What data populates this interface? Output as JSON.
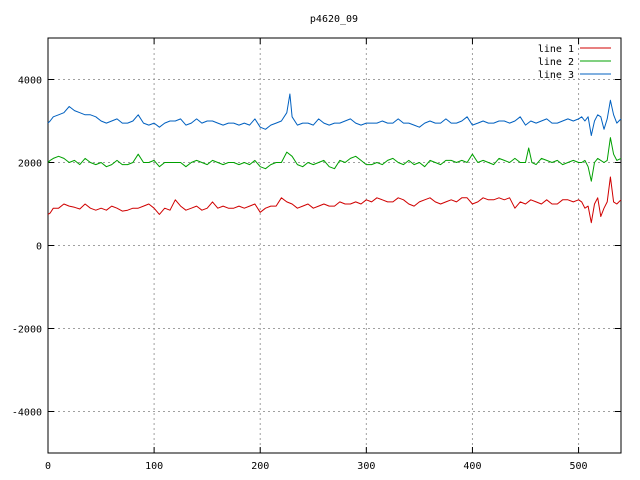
{
  "chart_data": {
    "type": "line",
    "title": "p4620_09",
    "xlabel": "",
    "ylabel": "",
    "xlim": [
      0,
      540
    ],
    "ylim": [
      -5000,
      5000
    ],
    "xticks": [
      0,
      100,
      200,
      300,
      400,
      500
    ],
    "yticks": [
      -4000,
      -2000,
      0,
      2000,
      4000
    ],
    "grid": true,
    "legend_position": "top-right",
    "series": [
      {
        "name": "line 1",
        "color": "#d00000",
        "x": [
          0,
          2,
          5,
          10,
          15,
          20,
          25,
          30,
          35,
          40,
          45,
          50,
          55,
          60,
          65,
          70,
          75,
          80,
          85,
          90,
          95,
          95,
          100,
          105,
          110,
          115,
          120,
          125,
          130,
          135,
          140,
          145,
          150,
          155,
          160,
          165,
          170,
          175,
          180,
          185,
          190,
          195,
          200,
          205,
          210,
          215,
          220,
          225,
          230,
          235,
          240,
          245,
          250,
          255,
          260,
          265,
          270,
          275,
          280,
          285,
          290,
          295,
          300,
          305,
          310,
          315,
          320,
          325,
          330,
          335,
          340,
          345,
          350,
          355,
          360,
          365,
          370,
          375,
          380,
          385,
          390,
          395,
          400,
          405,
          410,
          415,
          420,
          425,
          430,
          435,
          440,
          445,
          450,
          455,
          460,
          465,
          470,
          475,
          480,
          485,
          490,
          495,
          500,
          503,
          506,
          509,
          512,
          515,
          518,
          521,
          524,
          527,
          530,
          533,
          536,
          540
        ],
        "y": [
          750,
          780,
          900,
          900,
          1000,
          950,
          920,
          880,
          1000,
          900,
          850,
          900,
          850,
          950,
          900,
          830,
          850,
          900,
          900,
          950,
          1000,
          1000,
          900,
          750,
          900,
          850,
          1100,
          950,
          850,
          900,
          950,
          850,
          900,
          1050,
          900,
          950,
          900,
          900,
          950,
          900,
          950,
          1000,
          800,
          900,
          950,
          950,
          1150,
          1050,
          1000,
          900,
          950,
          1000,
          900,
          950,
          1000,
          950,
          950,
          1050,
          1000,
          1000,
          1050,
          1000,
          1100,
          1050,
          1150,
          1100,
          1050,
          1050,
          1150,
          1100,
          1000,
          950,
          1050,
          1100,
          1150,
          1050,
          1000,
          1050,
          1100,
          1050,
          1150,
          1150,
          1000,
          1050,
          1150,
          1100,
          1100,
          1150,
          1100,
          1150,
          900,
          1050,
          1000,
          1100,
          1050,
          1000,
          1100,
          1000,
          1000,
          1100,
          1100,
          1050,
          1100,
          1050,
          900,
          950,
          550,
          1000,
          1150,
          700,
          900,
          1050,
          1650,
          1050,
          1000,
          1100
        ]
      },
      {
        "name": "line 2",
        "color": "#00a000",
        "x": [
          0,
          2,
          5,
          10,
          15,
          20,
          25,
          30,
          35,
          40,
          45,
          50,
          55,
          60,
          65,
          70,
          75,
          80,
          85,
          90,
          95,
          100,
          105,
          110,
          115,
          120,
          125,
          130,
          135,
          140,
          145,
          150,
          155,
          160,
          165,
          170,
          175,
          180,
          185,
          190,
          195,
          200,
          205,
          210,
          215,
          220,
          225,
          230,
          235,
          240,
          245,
          250,
          255,
          260,
          265,
          270,
          275,
          280,
          285,
          290,
          295,
          300,
          305,
          310,
          315,
          320,
          325,
          330,
          335,
          340,
          345,
          350,
          355,
          360,
          365,
          370,
          375,
          380,
          385,
          390,
          395,
          400,
          405,
          410,
          415,
          420,
          425,
          430,
          435,
          440,
          445,
          450,
          453,
          456,
          460,
          465,
          470,
          475,
          480,
          485,
          490,
          495,
          500,
          503,
          506,
          509,
          512,
          515,
          518,
          521,
          524,
          527,
          530,
          533,
          536,
          540
        ],
        "y": [
          2000,
          2050,
          2100,
          2150,
          2100,
          2000,
          2050,
          1950,
          2100,
          2000,
          1950,
          2000,
          1900,
          1950,
          2050,
          1950,
          1950,
          2000,
          2200,
          2000,
          2000,
          2050,
          1900,
          2000,
          2000,
          2000,
          2000,
          1900,
          2000,
          2050,
          2000,
          1950,
          2050,
          2000,
          1950,
          2000,
          2000,
          1950,
          2000,
          1950,
          2050,
          1900,
          1850,
          1950,
          2000,
          2000,
          2250,
          2150,
          1950,
          1900,
          2000,
          1950,
          2000,
          2050,
          1900,
          1850,
          2050,
          2000,
          2100,
          2150,
          2050,
          1950,
          1950,
          2000,
          1950,
          2050,
          2100,
          2000,
          1950,
          2050,
          1950,
          2000,
          1900,
          2050,
          2000,
          1950,
          2050,
          2050,
          2000,
          2050,
          2000,
          2200,
          2000,
          2050,
          2000,
          1950,
          2100,
          2050,
          2000,
          2100,
          2000,
          2000,
          2350,
          2000,
          1950,
          2100,
          2050,
          2000,
          2050,
          1950,
          2000,
          2050,
          2000,
          2000,
          2050,
          1900,
          1550,
          2000,
          2100,
          2050,
          2000,
          2050,
          2600,
          2200,
          2050,
          2100
        ]
      },
      {
        "name": "line 3",
        "color": "#0060c0",
        "x": [
          0,
          2,
          5,
          10,
          15,
          20,
          25,
          30,
          35,
          40,
          45,
          50,
          55,
          60,
          65,
          70,
          75,
          80,
          85,
          90,
          95,
          100,
          105,
          110,
          115,
          120,
          125,
          130,
          135,
          140,
          145,
          150,
          155,
          160,
          165,
          170,
          175,
          180,
          185,
          190,
          195,
          200,
          205,
          210,
          215,
          220,
          225,
          228,
          230,
          235,
          240,
          245,
          250,
          255,
          260,
          265,
          270,
          275,
          280,
          285,
          290,
          295,
          300,
          305,
          310,
          315,
          320,
          325,
          330,
          335,
          340,
          345,
          350,
          355,
          360,
          365,
          370,
          375,
          380,
          385,
          390,
          395,
          400,
          405,
          410,
          415,
          420,
          425,
          430,
          435,
          440,
          445,
          450,
          455,
          460,
          465,
          470,
          475,
          480,
          485,
          490,
          495,
          500,
          503,
          506,
          509,
          512,
          515,
          518,
          521,
          524,
          527,
          530,
          533,
          536,
          540
        ],
        "y": [
          2950,
          3000,
          3100,
          3150,
          3200,
          3350,
          3250,
          3200,
          3150,
          3150,
          3100,
          3000,
          2950,
          3000,
          3050,
          2950,
          2950,
          3000,
          3150,
          2950,
          2900,
          2950,
          2850,
          2950,
          3000,
          3000,
          3050,
          2900,
          2950,
          3050,
          2950,
          3000,
          3000,
          2950,
          2900,
          2950,
          2950,
          2900,
          2950,
          2900,
          3050,
          2850,
          2800,
          2900,
          2950,
          3000,
          3200,
          3650,
          3100,
          2900,
          2950,
          2950,
          2900,
          3050,
          2950,
          2900,
          2950,
          2950,
          3000,
          3050,
          2950,
          2900,
          2950,
          2950,
          2950,
          3000,
          2950,
          2950,
          3050,
          2950,
          2950,
          2900,
          2850,
          2950,
          3000,
          2950,
          2950,
          3050,
          2950,
          2950,
          3000,
          3100,
          2900,
          2950,
          3000,
          2950,
          2950,
          3000,
          3000,
          2950,
          3000,
          3100,
          2900,
          3000,
          2950,
          3000,
          3050,
          2950,
          2950,
          3000,
          3050,
          3000,
          3050,
          3100,
          3000,
          3100,
          2650,
          3000,
          3150,
          3100,
          2800,
          3050,
          3500,
          3150,
          2950,
          3050
        ]
      }
    ]
  }
}
